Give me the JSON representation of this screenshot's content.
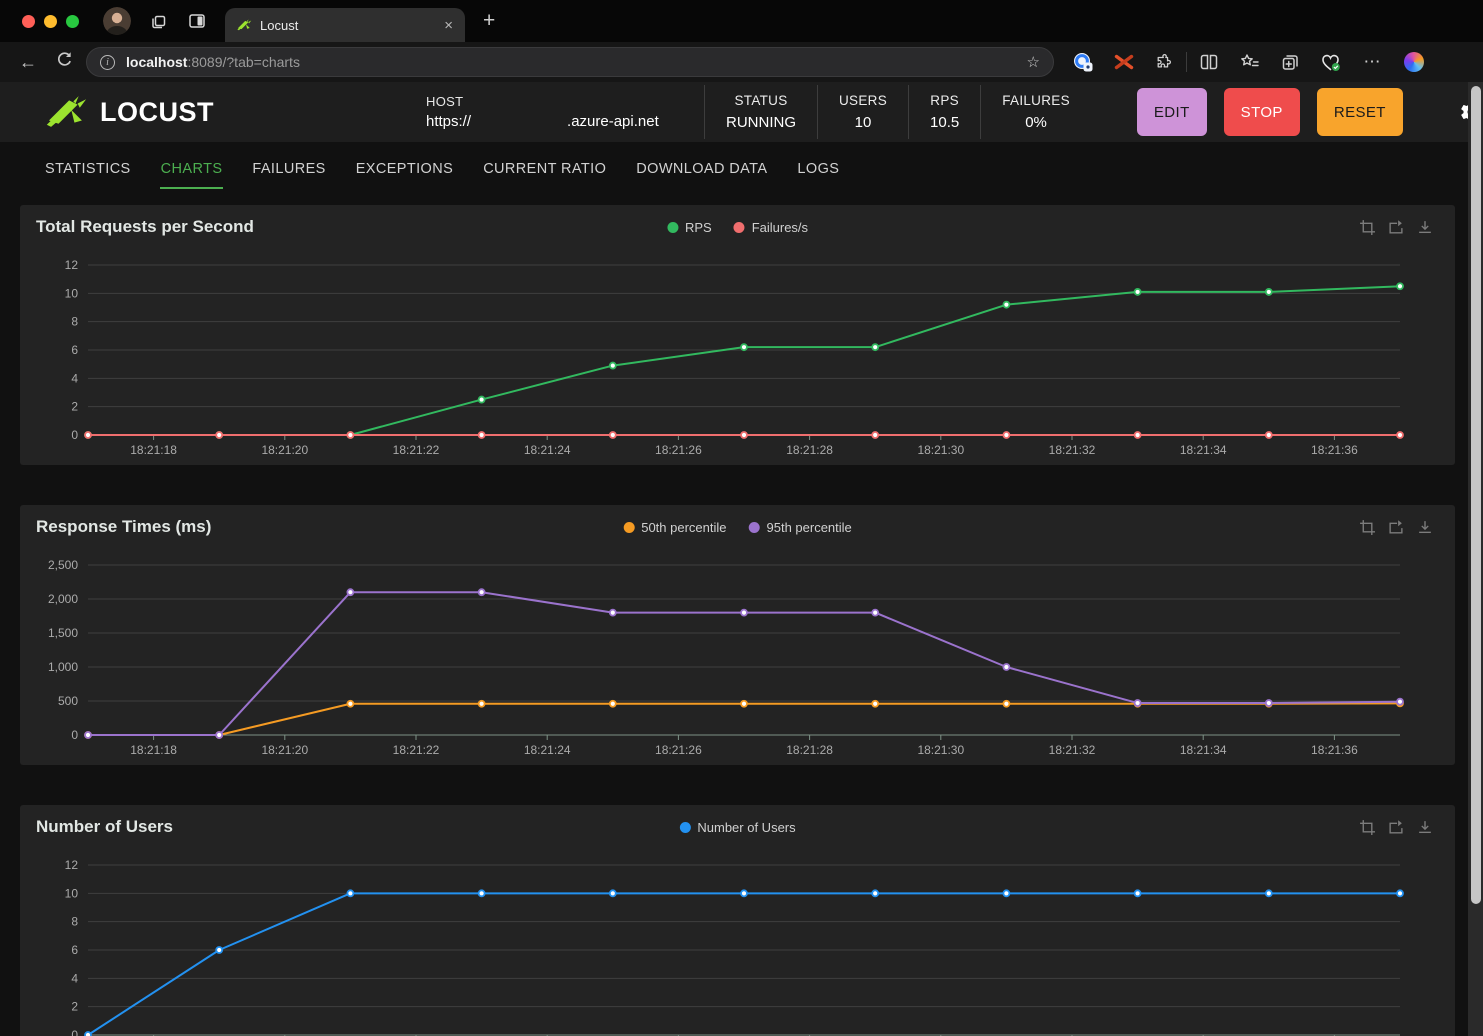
{
  "browser": {
    "traffic_lights": {
      "close": "#ff5f57",
      "minimize": "#febc2e",
      "maximize": "#28c840"
    },
    "tab": {
      "title": "Locust"
    },
    "url": {
      "host": "localhost",
      "rest": ":8089/?tab=charts"
    },
    "glyphs": {
      "back": "←",
      "close_tab": "×",
      "new_tab": "+",
      "info": "i",
      "star": "☆",
      "more": "⋯"
    }
  },
  "header": {
    "brand": "LOCUST",
    "logo_color": "#9ce32f",
    "host": {
      "label": "HOST",
      "url_prefix": "https://",
      "url_suffix": ".azure-api.net"
    },
    "stats": [
      {
        "label": "STATUS",
        "value": "RUNNING"
      },
      {
        "label": "USERS",
        "value": "10"
      },
      {
        "label": "RPS",
        "value": "10.5"
      },
      {
        "label": "FAILURES",
        "value": "0%"
      }
    ],
    "buttons": [
      {
        "label": "EDIT",
        "bg": "#ce93d8",
        "fg": "#1b1b1b"
      },
      {
        "label": "STOP",
        "bg": "#ef4c4c",
        "fg": "#ffffff"
      },
      {
        "label": "RESET",
        "bg": "#f8a42c",
        "fg": "#1b1b1b"
      }
    ]
  },
  "nav_tabs": [
    {
      "label": "STATISTICS",
      "active": false
    },
    {
      "label": "CHARTS",
      "active": true
    },
    {
      "label": "FAILURES",
      "active": false
    },
    {
      "label": "EXCEPTIONS",
      "active": false
    },
    {
      "label": "CURRENT RATIO",
      "active": false
    },
    {
      "label": "DOWNLOAD DATA",
      "active": false
    },
    {
      "label": "LOGS",
      "active": false
    }
  ],
  "accent_green": "#4caf50",
  "chart_data": [
    {
      "type": "line",
      "title": "Total Requests per Second",
      "x": [
        "18:21:17",
        "18:21:19",
        "18:21:21",
        "18:21:23",
        "18:21:25",
        "18:21:27",
        "18:21:29",
        "18:21:31",
        "18:21:33",
        "18:21:35",
        "18:21:37"
      ],
      "xtick_labels": [
        "18:21:18",
        "18:21:20",
        "18:21:22",
        "18:21:24",
        "18:21:26",
        "18:21:28",
        "18:21:30",
        "18:21:32",
        "18:21:34",
        "18:21:36"
      ],
      "ylim": [
        0,
        12
      ],
      "yticks": [
        0,
        2,
        4,
        6,
        8,
        10,
        12
      ],
      "grid": "horizontal",
      "legend_position": "top-center",
      "series": [
        {
          "name": "RPS",
          "color": "#32b95f",
          "values": [
            0,
            0,
            0,
            2.5,
            4.9,
            6.2,
            6.2,
            9.2,
            10.1,
            10.1,
            10.5
          ]
        },
        {
          "name": "Failures/s",
          "color": "#f06e6e",
          "values": [
            0,
            0,
            0,
            0,
            0,
            0,
            0,
            0,
            0,
            0,
            0
          ]
        }
      ]
    },
    {
      "type": "line",
      "title": "Response Times (ms)",
      "x": [
        "18:21:17",
        "18:21:19",
        "18:21:21",
        "18:21:23",
        "18:21:25",
        "18:21:27",
        "18:21:29",
        "18:21:31",
        "18:21:33",
        "18:21:35",
        "18:21:37"
      ],
      "xtick_labels": [
        "18:21:18",
        "18:21:20",
        "18:21:22",
        "18:21:24",
        "18:21:26",
        "18:21:28",
        "18:21:30",
        "18:21:32",
        "18:21:34",
        "18:21:36"
      ],
      "ylim": [
        0,
        2500
      ],
      "yticks": [
        0,
        500,
        1000,
        1500,
        2000,
        2500
      ],
      "grid": "horizontal",
      "legend_position": "top-center",
      "series": [
        {
          "name": "50th percentile",
          "color": "#f59b23",
          "values": [
            0,
            0,
            460,
            460,
            460,
            460,
            460,
            460,
            460,
            460,
            465
          ]
        },
        {
          "name": "95th percentile",
          "color": "#9b73cd",
          "values": [
            0,
            0,
            2100,
            2100,
            1800,
            1800,
            1800,
            1000,
            470,
            470,
            490
          ]
        }
      ]
    },
    {
      "type": "line",
      "title": "Number of Users",
      "x": [
        "18:21:17",
        "18:21:19",
        "18:21:21",
        "18:21:23",
        "18:21:25",
        "18:21:27",
        "18:21:29",
        "18:21:31",
        "18:21:33",
        "18:21:35",
        "18:21:37"
      ],
      "xtick_labels": [
        "18:21:18",
        "18:21:20",
        "18:21:22",
        "18:21:24",
        "18:21:26",
        "18:21:28",
        "18:21:30",
        "18:21:32",
        "18:21:34",
        "18:21:36"
      ],
      "ylim": [
        0,
        12
      ],
      "yticks": [
        0,
        2,
        4,
        6,
        8,
        10,
        12
      ],
      "grid": "horizontal",
      "legend_position": "top-center",
      "series": [
        {
          "name": "Number of Users",
          "color": "#2391f0",
          "values": [
            0,
            6,
            10,
            10,
            10,
            10,
            10,
            10,
            10,
            10,
            10
          ]
        }
      ]
    }
  ]
}
